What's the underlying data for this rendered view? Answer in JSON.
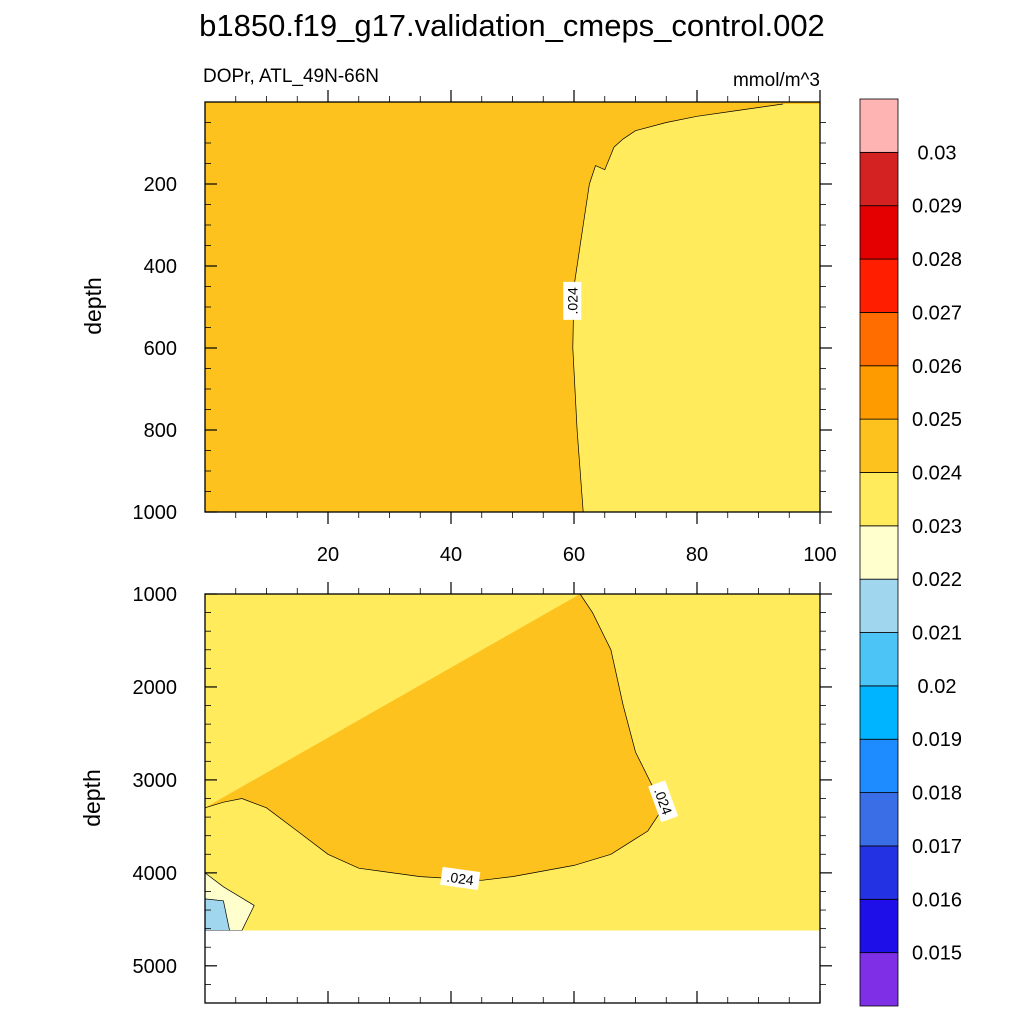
{
  "figure": {
    "title": "b1850.f19_g17.validation_cmeps_control.002",
    "subtitle_left": "DOPr, ATL_49N-66N",
    "subtitle_right": "mmol/m^3"
  },
  "colorbar": {
    "colors": [
      "#7f2fe6",
      "#1e0fe8",
      "#2332e3",
      "#3a6ee6",
      "#1e8cff",
      "#00b4ff",
      "#4cc4f5",
      "#a1d7ee",
      "#ffffce",
      "#ffeb5c",
      "#fdc21e",
      "#fd9b00",
      "#ff6d00",
      "#ff1e00",
      "#e40000",
      "#d42222",
      "#ffb4b4"
    ],
    "labels": [
      "0.015",
      "0.016",
      "0.017",
      "0.018",
      "0.019",
      "0.02",
      "0.021",
      "0.022",
      "0.023",
      "0.024",
      "0.025",
      "0.026",
      "0.027",
      "0.028",
      "0.029",
      "0.03"
    ]
  },
  "chart_data": [
    {
      "type": "contour",
      "panel": "upper",
      "title": "DOPr, ATL_49N-66N",
      "units": "mmol/m^3",
      "xlabel": "",
      "ylabel": "depth",
      "xlim": [
        0,
        100
      ],
      "ylim": [
        1000,
        0
      ],
      "xticks": [
        20,
        40,
        60,
        80,
        100
      ],
      "yticks": [
        200,
        400,
        600,
        800,
        1000
      ],
      "contour_label": ".024",
      "fill_colors": {
        "above_0.024": "#fdc21e",
        "between_0.023_0.024": "#ffeb5c"
      },
      "contour_0024": [
        {
          "x": 61.5,
          "y": 1000
        },
        {
          "x": 60.5,
          "y": 800
        },
        {
          "x": 59.8,
          "y": 600
        },
        {
          "x": 60,
          "y": 450
        },
        {
          "x": 61.5,
          "y": 300
        },
        {
          "x": 62.5,
          "y": 200
        },
        {
          "x": 63.5,
          "y": 155
        },
        {
          "x": 65,
          "y": 165
        },
        {
          "x": 66.5,
          "y": 110
        },
        {
          "x": 68,
          "y": 90
        },
        {
          "x": 70,
          "y": 70
        },
        {
          "x": 75,
          "y": 50
        },
        {
          "x": 80,
          "y": 35
        },
        {
          "x": 86,
          "y": 22
        },
        {
          "x": 94,
          "y": 5
        }
      ]
    },
    {
      "type": "contour",
      "panel": "lower",
      "xlabel": "",
      "ylabel": "depth",
      "xlim": [
        0,
        100
      ],
      "ylim": [
        5400,
        1000
      ],
      "yticks": [
        1000,
        2000,
        3000,
        4000,
        5000
      ],
      "data_bottom_depth": 4620,
      "contour_label": ".024",
      "contour_0024": [
        {
          "x": 61,
          "y": 1000
        },
        {
          "x": 63,
          "y": 1200
        },
        {
          "x": 66,
          "y": 1600
        },
        {
          "x": 68,
          "y": 2200
        },
        {
          "x": 70,
          "y": 2700
        },
        {
          "x": 73,
          "y": 3100
        },
        {
          "x": 74,
          "y": 3350
        },
        {
          "x": 72,
          "y": 3550
        },
        {
          "x": 66,
          "y": 3800
        },
        {
          "x": 60,
          "y": 3920
        },
        {
          "x": 50,
          "y": 4040
        },
        {
          "x": 45,
          "y": 4080
        },
        {
          "x": 35,
          "y": 4040
        },
        {
          "x": 25,
          "y": 3950
        },
        {
          "x": 20,
          "y": 3800
        },
        {
          "x": 15,
          "y": 3550
        },
        {
          "x": 10,
          "y": 3300
        },
        {
          "x": 6,
          "y": 3200
        },
        {
          "x": 3,
          "y": 3240
        },
        {
          "x": 0,
          "y": 3300
        }
      ],
      "region_0023_0024_left": [
        {
          "x": 0,
          "y": 4000
        },
        {
          "x": 3,
          "y": 4150
        },
        {
          "x": 8,
          "y": 4350
        },
        {
          "x": 6,
          "y": 4620
        },
        {
          "x": 0,
          "y": 4620
        }
      ],
      "region_0021_0022_left": [
        {
          "x": 0,
          "y": 4280
        },
        {
          "x": 3,
          "y": 4300
        },
        {
          "x": 4,
          "y": 4620
        },
        {
          "x": 0,
          "y": 4620
        }
      ]
    }
  ]
}
